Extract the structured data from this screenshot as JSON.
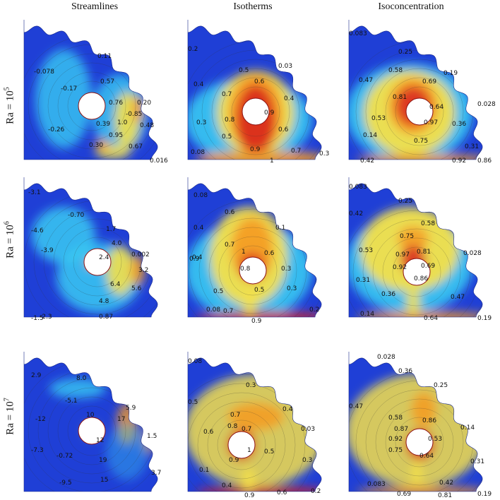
{
  "columns": [
    "Streamlines",
    "Isotherms",
    "Isoconcentration"
  ],
  "rows": [
    {
      "ra_prefix": "Ra = 10",
      "ra_exp": "5"
    },
    {
      "ra_prefix": "Ra = 10",
      "ra_exp": "6"
    },
    {
      "ra_prefix": "Ra = 10",
      "ra_exp": "7"
    }
  ],
  "labels": [
    [
      "0.11",
      "-0.078",
      "0.57",
      "-0.17",
      "0.76",
      "0.20",
      "-0.85",
      "1.0",
      "0.39",
      "0.48",
      "-0.26",
      "0.95",
      "0.30",
      "0.67",
      "0.016"
    ],
    [
      "0.2",
      "0.03",
      "0.5",
      "0.4",
      "0.6",
      "0.7",
      "0.4",
      "0.8",
      "0.9",
      "0.3",
      "0.6",
      "0.5",
      "0.08",
      "0.9",
      "0.7",
      "1",
      "0.3"
    ],
    [
      "0.083",
      "0.25",
      "0.58",
      "0.19",
      "0.47",
      "0.69",
      "0.81",
      "0.028",
      "0.64",
      "0.53",
      "0.97",
      "0.36",
      "0.14",
      "0.75",
      "0.31",
      "0.42",
      "0.92",
      "0.86"
    ],
    [
      "-3.1",
      "-0.70",
      "-4.6",
      "-3.9",
      "1.7",
      "4.0",
      "0.002",
      "2.4",
      "3.2",
      "6.4",
      "5.6",
      "-1.5",
      "4.8",
      "-2.3",
      "0.87"
    ],
    [
      "0.08",
      "0.6",
      "0.1",
      "0.4",
      "0.7",
      "1",
      "0.6",
      "0.4",
      "0.8",
      "0.3",
      "0.9",
      "0.3",
      "0.5",
      "0.5",
      "0.08",
      "0.7",
      "0.2",
      "0.9"
    ],
    [
      "0.083",
      "0.25",
      "0.42",
      "0.58",
      "0.75",
      "0.53",
      "0.97",
      "0.81",
      "0.028",
      "0.92",
      "0.69",
      "0.86",
      "0.31",
      "0.47",
      "0.36",
      "0.14",
      "0.64",
      "0.19"
    ],
    [
      "2.9",
      "8.0",
      "-5.1",
      "10",
      "5.9",
      "17",
      "-12",
      "1.5",
      "12",
      "-7.3",
      "-0.72",
      "19",
      "3.7",
      "-9.5",
      "15"
    ],
    [
      "0.08",
      "0.3",
      "0.5",
      "0.7",
      "0.4",
      "0.6",
      "0.8",
      "0.7",
      "0.03",
      "1",
      "0.5",
      "0.9",
      "0.3",
      "0.1",
      "0.4",
      "0.9",
      "0.6",
      "0.2"
    ],
    [
      "0.028",
      "0.36",
      "0.25",
      "0.47",
      "0.58",
      "0.86",
      "0.14",
      "0.87",
      "0.92",
      "0.53",
      "0.75",
      "0.64",
      "0.31",
      "0.083",
      "0.42",
      "0.69",
      "0.81",
      "0.19"
    ]
  ],
  "colors": {
    "deep_blue": "#1f3fd6",
    "cyan": "#38c9f2",
    "yellow": "#f4e04a",
    "orange": "#f59a24",
    "red": "#d8261e"
  }
}
